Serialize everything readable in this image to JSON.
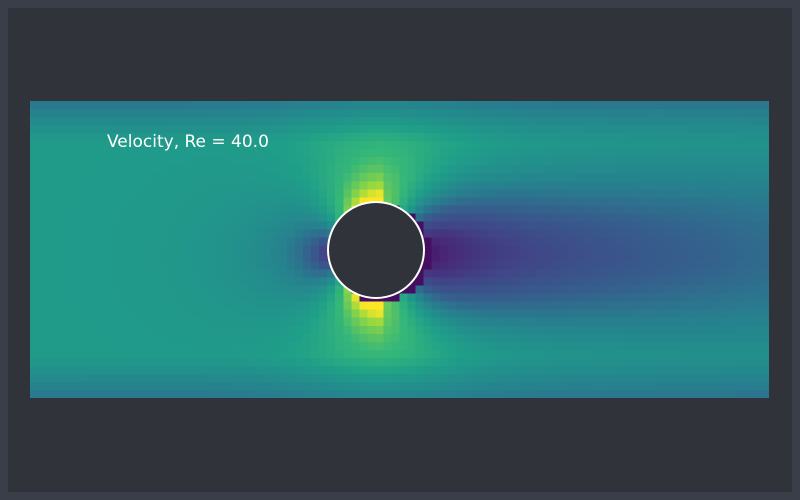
{
  "label": "Velocity, Re = 40.0",
  "reynolds_number": 40.0,
  "colors": {
    "page_border": "#3a3e48",
    "background": "#30333a",
    "obstacle_fill": "#30333a",
    "obstacle_stroke": "#ffffff",
    "label_text": "#ffffff"
  },
  "colormap": "viridis",
  "obstacle_shape": "circle"
}
